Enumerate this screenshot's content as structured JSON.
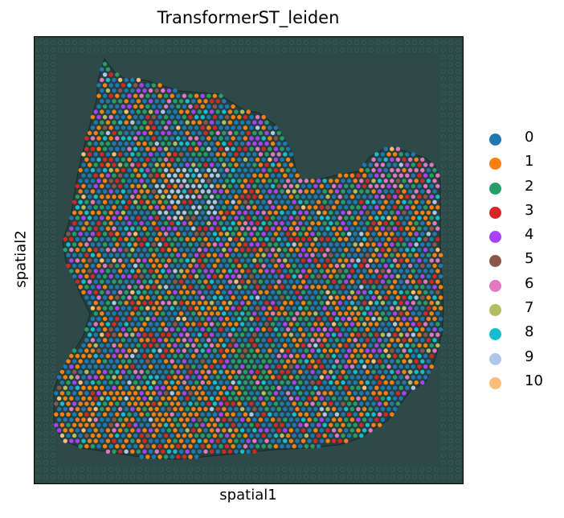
{
  "chart_data": {
    "type": "scatter",
    "title": "TransformerST_leiden",
    "xlabel": "spatial1",
    "ylabel": "spatial2",
    "grid": false,
    "legend_position": "right",
    "background": "tissue histology image (dark teal)",
    "series": [
      {
        "name": "0",
        "color": "#1f77b4"
      },
      {
        "name": "1",
        "color": "#ff7f0e"
      },
      {
        "name": "2",
        "color": "#279e68"
      },
      {
        "name": "3",
        "color": "#d62728"
      },
      {
        "name": "4",
        "color": "#aa40fc"
      },
      {
        "name": "5",
        "color": "#8c564b"
      },
      {
        "name": "6",
        "color": "#e377c2"
      },
      {
        "name": "7",
        "color": "#b5bd61"
      },
      {
        "name": "8",
        "color": "#17becf"
      },
      {
        "name": "9",
        "color": "#aec7e8"
      },
      {
        "name": "10",
        "color": "#ffbb78"
      }
    ]
  }
}
